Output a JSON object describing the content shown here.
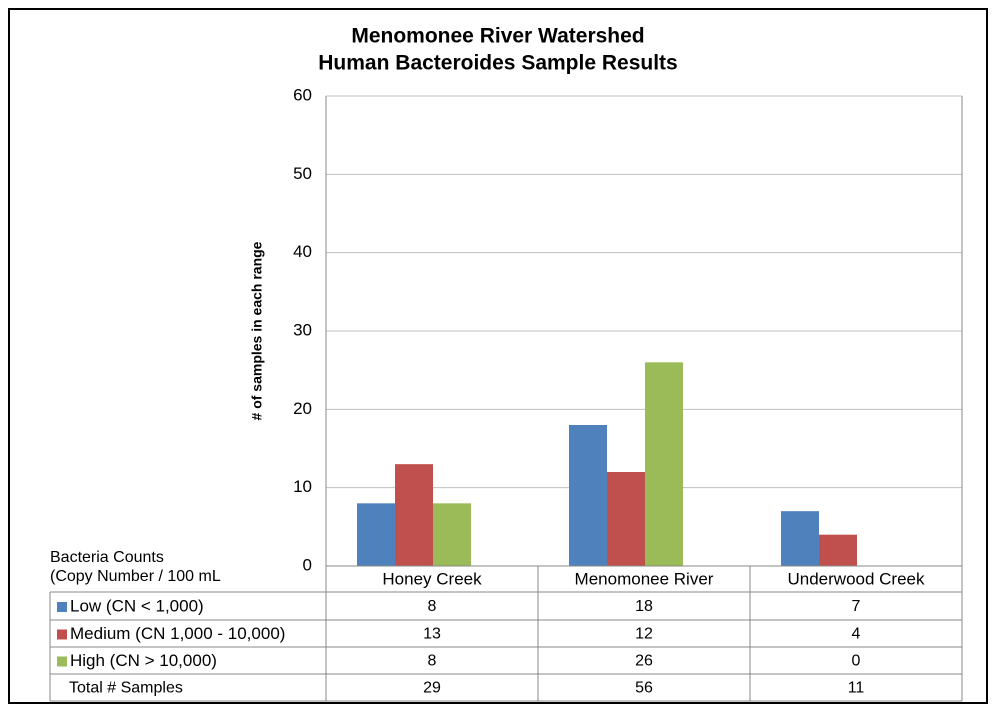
{
  "chart_data": {
    "type": "bar",
    "title": [
      "Menomonee River Watershed",
      "Human Bacteroides Sample Results"
    ],
    "y_label": "# of samples in each range",
    "categories": [
      "Honey Creek",
      "Menomonee River",
      "Underwood Creek"
    ],
    "series": [
      {
        "name": "Low (CN < 1,000)",
        "color": "#4f81bd",
        "values": [
          8,
          18,
          7
        ]
      },
      {
        "name": "Medium (CN 1,000 - 10,000)",
        "color": "#c0504d",
        "values": [
          13,
          12,
          4
        ]
      },
      {
        "name": "High (CN > 10,000)",
        "color": "#9bbb59",
        "values": [
          8,
          26,
          0
        ]
      }
    ],
    "table_header": [
      "Bacteria Counts",
      "(Copy Number / 100 mL"
    ],
    "total_label": "Total # Samples",
    "totals": [
      29,
      56,
      11
    ],
    "ylim": [
      0,
      60
    ],
    "yticks": [
      0,
      10,
      20,
      30,
      40,
      50,
      60
    ],
    "grid": true
  }
}
